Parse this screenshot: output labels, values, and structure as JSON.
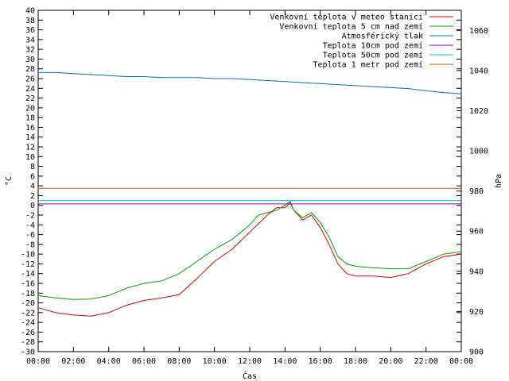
{
  "chart_data": {
    "type": "line",
    "xlabel": "Čas",
    "ylabel_left": "°C",
    "ylabel_right": "hPa",
    "xlim_hours": [
      0,
      24
    ],
    "ylim_left": [
      -30,
      40
    ],
    "ylim_right": [
      900,
      1070
    ],
    "x_tick_labels": [
      "00:00",
      "02:00",
      "04:00",
      "06:00",
      "08:00",
      "10:00",
      "12:00",
      "14:00",
      "16:00",
      "18:00",
      "20:00",
      "22:00",
      "00:00"
    ],
    "y_left_ticks": [
      40,
      38,
      36,
      34,
      32,
      30,
      28,
      26,
      24,
      22,
      20,
      18,
      16,
      14,
      12,
      10,
      8,
      6,
      4,
      2,
      0,
      -2,
      -4,
      -6,
      -8,
      -10,
      -12,
      -14,
      -16,
      -18,
      -20,
      -22,
      -24,
      -26,
      -28,
      -30
    ],
    "y_right_ticks": [
      1060,
      1040,
      1020,
      1000,
      980,
      960,
      940,
      920,
      900
    ],
    "grid": false,
    "legend_position": "top-right",
    "series": [
      {
        "name": "Venkovní teplota v meteo stanici",
        "axis": "left",
        "color": "#e00000",
        "points": [
          [
            0,
            -21
          ],
          [
            0.5,
            -21.5
          ],
          [
            1,
            -22
          ],
          [
            2,
            -22.5
          ],
          [
            3,
            -22.7
          ],
          [
            4,
            -22
          ],
          [
            5,
            -20.5
          ],
          [
            6,
            -19.5
          ],
          [
            7,
            -19
          ],
          [
            8,
            -18.3
          ],
          [
            9,
            -15
          ],
          [
            10,
            -11.5
          ],
          [
            11,
            -9
          ],
          [
            12,
            -5.5
          ],
          [
            13,
            -2
          ],
          [
            13.5,
            -0.5
          ],
          [
            14,
            -0.5
          ],
          [
            14.3,
            0.5
          ],
          [
            14.5,
            -1
          ],
          [
            15,
            -3
          ],
          [
            15.5,
            -2
          ],
          [
            16,
            -4.5
          ],
          [
            16.5,
            -8
          ],
          [
            17,
            -12
          ],
          [
            17.5,
            -14
          ],
          [
            18,
            -14.5
          ],
          [
            19,
            -14.5
          ],
          [
            20,
            -14.8
          ],
          [
            21,
            -14
          ],
          [
            22,
            -12
          ],
          [
            23,
            -10.5
          ],
          [
            24,
            -10
          ]
        ]
      },
      {
        "name": "Venkovní teplota 5 cm nad zemí",
        "axis": "left",
        "color": "#00a000",
        "points": [
          [
            0,
            -18.5
          ],
          [
            1,
            -19
          ],
          [
            2,
            -19.3
          ],
          [
            3,
            -19.2
          ],
          [
            4,
            -18.5
          ],
          [
            5,
            -17
          ],
          [
            6,
            -16
          ],
          [
            7,
            -15.5
          ],
          [
            8,
            -14
          ],
          [
            9,
            -11.5
          ],
          [
            10,
            -9
          ],
          [
            11,
            -7
          ],
          [
            12,
            -4
          ],
          [
            12.5,
            -2
          ],
          [
            13,
            -1.5
          ],
          [
            13.5,
            -1
          ],
          [
            14,
            0
          ],
          [
            14.3,
            0.8
          ],
          [
            14.5,
            -1
          ],
          [
            15,
            -2.5
          ],
          [
            15.5,
            -1.5
          ],
          [
            16,
            -3.5
          ],
          [
            16.5,
            -6.5
          ],
          [
            17,
            -10.5
          ],
          [
            17.5,
            -12
          ],
          [
            18,
            -12.5
          ],
          [
            19,
            -12.8
          ],
          [
            20,
            -13
          ],
          [
            21,
            -13
          ],
          [
            22,
            -11.5
          ],
          [
            23,
            -10
          ],
          [
            24,
            -9.5
          ]
        ]
      },
      {
        "name": "Atmosférický tlak",
        "axis": "right",
        "color": "#0070c0",
        "points": [
          [
            0,
            1039
          ],
          [
            1,
            1039
          ],
          [
            2,
            1038.5
          ],
          [
            3,
            1038
          ],
          [
            4,
            1037.5
          ],
          [
            5,
            1037
          ],
          [
            6,
            1037
          ],
          [
            7,
            1036.5
          ],
          [
            8,
            1036.5
          ],
          [
            9,
            1036.5
          ],
          [
            10,
            1036
          ],
          [
            11,
            1036
          ],
          [
            12,
            1035.5
          ],
          [
            13,
            1035
          ],
          [
            14,
            1034.5
          ],
          [
            15,
            1034
          ],
          [
            16,
            1033.5
          ],
          [
            17,
            1033
          ],
          [
            18,
            1032.5
          ],
          [
            19,
            1032
          ],
          [
            20,
            1031.5
          ],
          [
            21,
            1031
          ],
          [
            22,
            1030
          ],
          [
            23,
            1029
          ],
          [
            24,
            1028.5
          ]
        ]
      },
      {
        "name": "Teplota 10cm pod zemí",
        "axis": "left",
        "color": "#9000c0",
        "points": [
          [
            0,
            0.3
          ],
          [
            24,
            0.3
          ]
        ]
      },
      {
        "name": "Teplota 50cm pod zemí",
        "axis": "left",
        "color": "#00c8c8",
        "points": [
          [
            0,
            1.0
          ],
          [
            24,
            1.0
          ]
        ]
      },
      {
        "name": "Teplota 1 metr pod zemí",
        "axis": "left",
        "color": "#c06000",
        "points": [
          [
            0,
            3.5
          ],
          [
            24,
            3.5
          ]
        ]
      }
    ]
  }
}
